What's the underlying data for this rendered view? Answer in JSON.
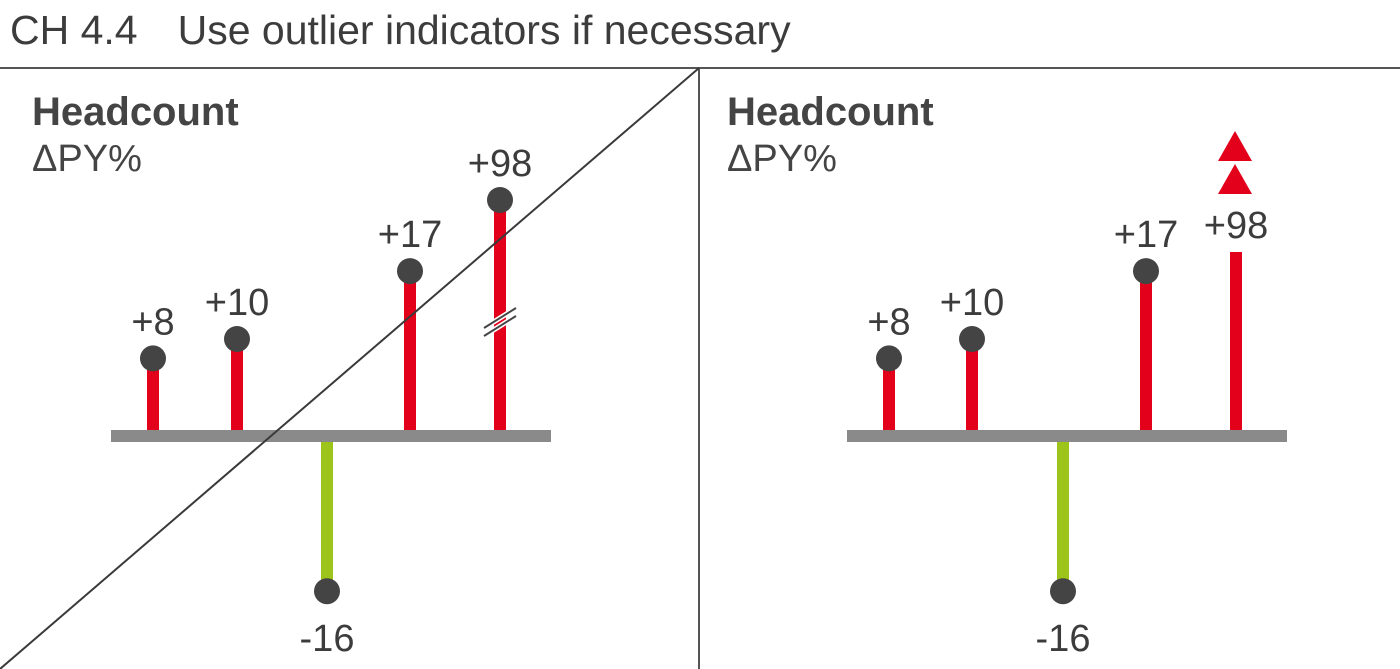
{
  "header": {
    "code": "CH 4.4",
    "title": "Use outlier indicators if necessary"
  },
  "colors": {
    "positive": "#e2001a",
    "negative": "#9dc41a",
    "baseline": "#8a8a8a",
    "dot": "#444444",
    "text": "#3c3c3c",
    "rule": "#555555"
  },
  "chart_data": [
    {
      "type": "lollipop",
      "title": "Headcount",
      "subtitle": "ΔPY%",
      "values": [
        8,
        10,
        -16,
        17,
        98
      ],
      "value_labels": [
        "+8",
        "+10",
        "-16",
        "+17",
        "+98"
      ],
      "outlier_index": 4,
      "outlier_marker": "axis-break",
      "crossed_out": true
    },
    {
      "type": "lollipop",
      "title": "Headcount",
      "subtitle": "ΔPY%",
      "values": [
        8,
        10,
        -16,
        17,
        98
      ],
      "value_labels": [
        "+8",
        "+10",
        "-16",
        "+17",
        "+98"
      ],
      "outlier_index": 4,
      "outlier_marker": "double-up-triangle-indicator",
      "crossed_out": false
    }
  ]
}
